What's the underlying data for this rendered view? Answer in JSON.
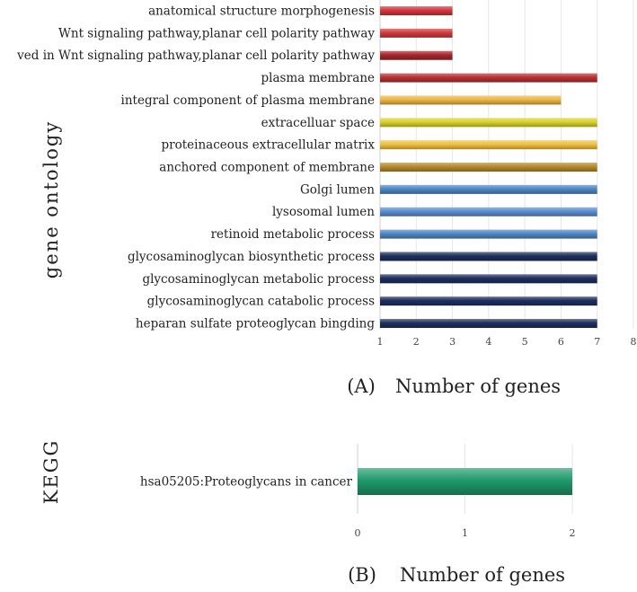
{
  "chart_data": [
    {
      "type": "bar",
      "orientation": "horizontal",
      "panel_label": "(A)",
      "xlabel": "Number of genes",
      "ylabel": "gene ontology",
      "xlim": [
        1,
        8
      ],
      "xticks": [
        1,
        2,
        3,
        4,
        5,
        6,
        7,
        8
      ],
      "grid": true,
      "categories": [
        "anatomical structure morphogenesis",
        "Wnt signaling pathway,planar cell polarity pathway",
        "ved in Wnt signaling pathway,planar cell polarity pathway",
        "plasma membrane",
        "integral component of plasma membrane",
        "extracelluar space",
        "proteinaceous extracellular matrix",
        "anchored component of membrane",
        "Golgi lumen",
        "lysosomal lumen",
        "retinoid metabolic process",
        "glycosaminoglycan biosynthetic process",
        "glycosaminoglycan metabolic process",
        "glycosaminoglycan catabolic process",
        "heparan sulfate proteoglycan bingding"
      ],
      "values": [
        3,
        3,
        3,
        7,
        6,
        7,
        7,
        7,
        7,
        7,
        7,
        7,
        7,
        7,
        7
      ],
      "colors": [
        "#d6353b",
        "#d3393d",
        "#a8262b",
        "#b83134",
        "#ecb641",
        "#d9d22a",
        "#efc13f",
        "#b8892b",
        "#4f86c6",
        "#5a8ed0",
        "#4f86c6",
        "#1d2f5e",
        "#1d2f5e",
        "#1d2f5e",
        "#1d2f5e"
      ]
    },
    {
      "type": "bar",
      "orientation": "horizontal",
      "panel_label": "(B)",
      "xlabel": "Number of genes",
      "ylabel": "KEGG",
      "xlim": [
        0,
        2
      ],
      "xticks": [
        0,
        1,
        2
      ],
      "grid": true,
      "categories": [
        "hsa05205:Proteoglycans in cancer"
      ],
      "values": [
        2
      ],
      "colors": [
        "#1f9a6c"
      ]
    }
  ]
}
